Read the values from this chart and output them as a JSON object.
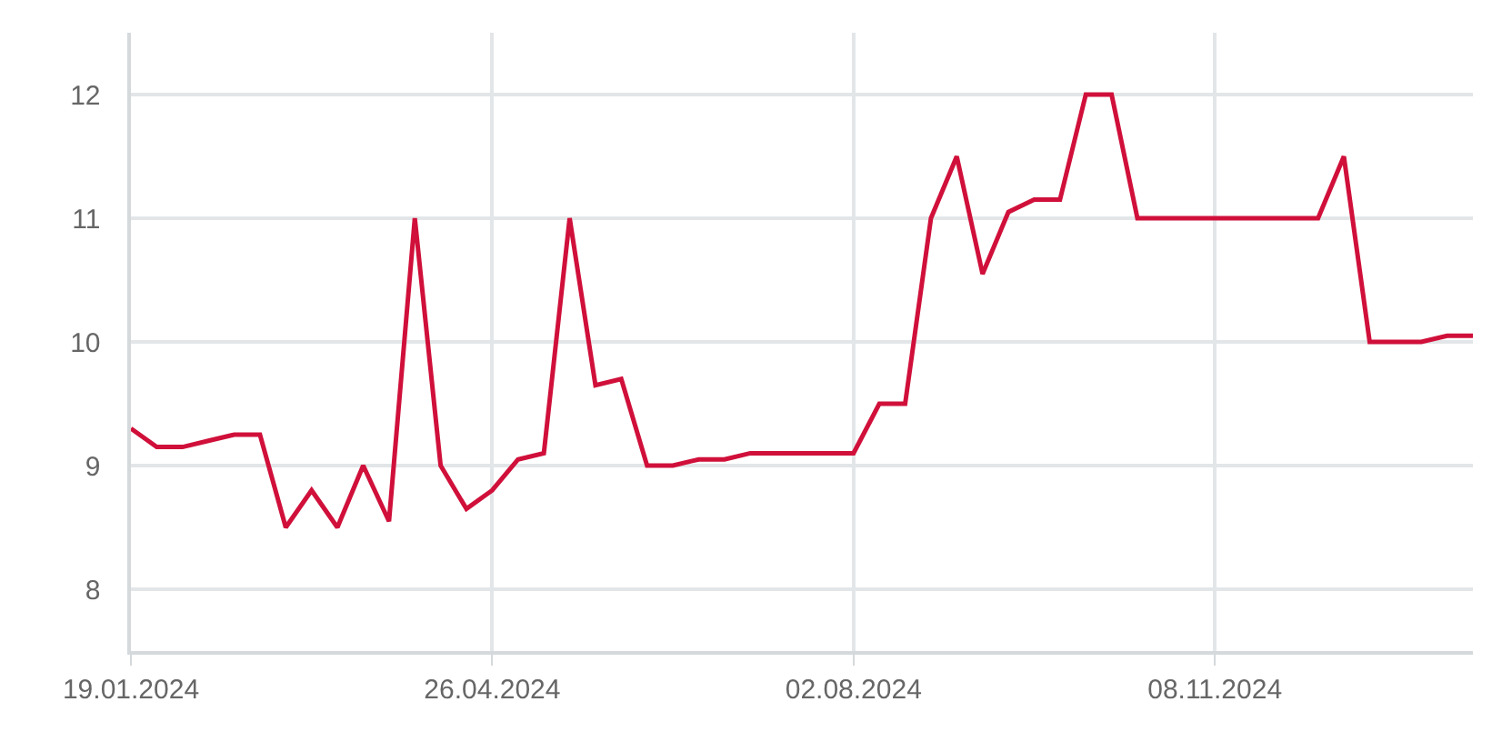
{
  "chart_data": {
    "type": "line",
    "x": [
      "2024-01-19",
      "2024-01-26",
      "2024-02-02",
      "2024-02-09",
      "2024-02-16",
      "2024-02-23",
      "2024-03-01",
      "2024-03-08",
      "2024-03-15",
      "2024-03-22",
      "2024-03-29",
      "2024-04-05",
      "2024-04-12",
      "2024-04-19",
      "2024-04-26",
      "2024-05-03",
      "2024-05-10",
      "2024-05-17",
      "2024-05-24",
      "2024-05-31",
      "2024-06-07",
      "2024-06-14",
      "2024-06-21",
      "2024-06-28",
      "2024-07-05",
      "2024-07-12",
      "2024-07-19",
      "2024-07-26",
      "2024-08-02",
      "2024-08-09",
      "2024-08-16",
      "2024-08-23",
      "2024-08-30",
      "2024-09-06",
      "2024-09-13",
      "2024-09-20",
      "2024-09-27",
      "2024-10-04",
      "2024-10-11",
      "2024-10-18",
      "2024-10-25",
      "2024-11-01",
      "2024-11-08",
      "2024-11-15",
      "2024-11-22",
      "2024-11-29",
      "2024-12-06",
      "2024-12-13",
      "2024-12-20",
      "2024-12-27",
      "2025-01-03",
      "2025-01-10",
      "2025-01-17"
    ],
    "series": [
      {
        "color": "#d0103a",
        "values": [
          9.3,
          9.15,
          9.15,
          9.2,
          9.25,
          9.25,
          8.5,
          8.8,
          8.5,
          9.0,
          8.55,
          11.0,
          9.0,
          8.65,
          8.8,
          9.05,
          9.1,
          11.0,
          9.65,
          9.7,
          9.0,
          9.0,
          9.05,
          9.05,
          9.1,
          9.1,
          9.1,
          9.1,
          9.1,
          9.5,
          9.5,
          11.0,
          11.5,
          10.55,
          11.05,
          11.15,
          11.15,
          12.0,
          12.0,
          11.0,
          11.0,
          11.0,
          11.0,
          11.0,
          11.0,
          11.0,
          11.0,
          11.5,
          10.0,
          10.0,
          10.0,
          10.05,
          10.05
        ]
      }
    ],
    "xlim": [
      "2024-01-19",
      "2025-01-17"
    ],
    "xticks": [
      {
        "value": "2024-01-19",
        "label": "19.01.2024"
      },
      {
        "value": "2024-04-26",
        "label": "26.04.2024"
      },
      {
        "value": "2024-08-02",
        "label": "02.08.2024"
      },
      {
        "value": "2024-11-08",
        "label": "08.11.2024"
      }
    ],
    "ylim": [
      7.5,
      12.5
    ],
    "yticks": [
      8,
      9,
      10,
      11,
      12
    ],
    "grid": true,
    "marker": "none",
    "line_style": "solid"
  }
}
